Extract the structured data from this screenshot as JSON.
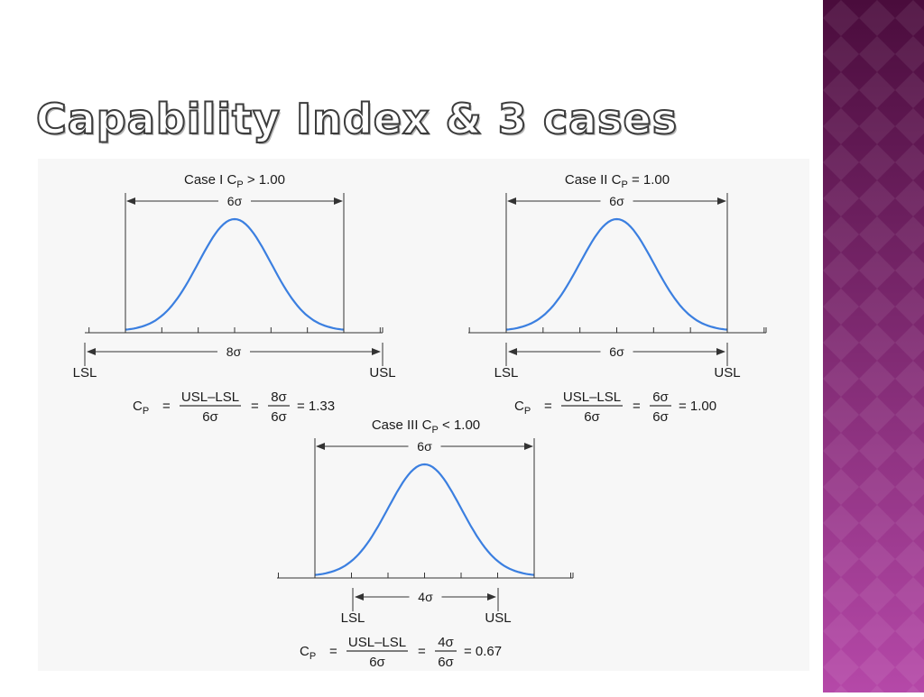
{
  "title": "Capability Index & 3 cases",
  "sidebar": {
    "gradient_top": "#4a0c3c",
    "gradient_bottom": "#b548a8"
  },
  "colors": {
    "curve": "#3b7fe0",
    "line": "#333333",
    "text": "#1a1a1a",
    "figure_bg": "#f7f7f7"
  },
  "cases": [
    {
      "title": "Case I C",
      "title_sub": "P",
      "title_rel": "> 1.00",
      "process_spread": "6σ",
      "spec_spread": "8σ",
      "lsl": "LSL",
      "usl": "USL",
      "formula": {
        "lhs": "C",
        "lhs_sub": "P",
        "eq": "=",
        "num1": "USL–LSL",
        "den1": "6σ",
        "num2": "8σ",
        "den2": "6σ",
        "result": "= 1.33"
      }
    },
    {
      "title": "Case II C",
      "title_sub": "P",
      "title_rel": "= 1.00",
      "process_spread": "6σ",
      "spec_spread": "6σ",
      "lsl": "LSL",
      "usl": "USL",
      "formula": {
        "lhs": "C",
        "lhs_sub": "P",
        "eq": "=",
        "num1": "USL–LSL",
        "den1": "6σ",
        "num2": "6σ",
        "den2": "6σ",
        "result": "= 1.00"
      }
    },
    {
      "title": "Case III C",
      "title_sub": "P",
      "title_rel": "< 1.00",
      "process_spread": "6σ",
      "spec_spread": "4σ",
      "lsl": "LSL",
      "usl": "USL",
      "formula": {
        "lhs": "C",
        "lhs_sub": "P",
        "eq": "=",
        "num1": "USL–LSL",
        "den1": "6σ",
        "num2": "4σ",
        "den2": "6σ",
        "result": "= 0.67"
      }
    }
  ]
}
